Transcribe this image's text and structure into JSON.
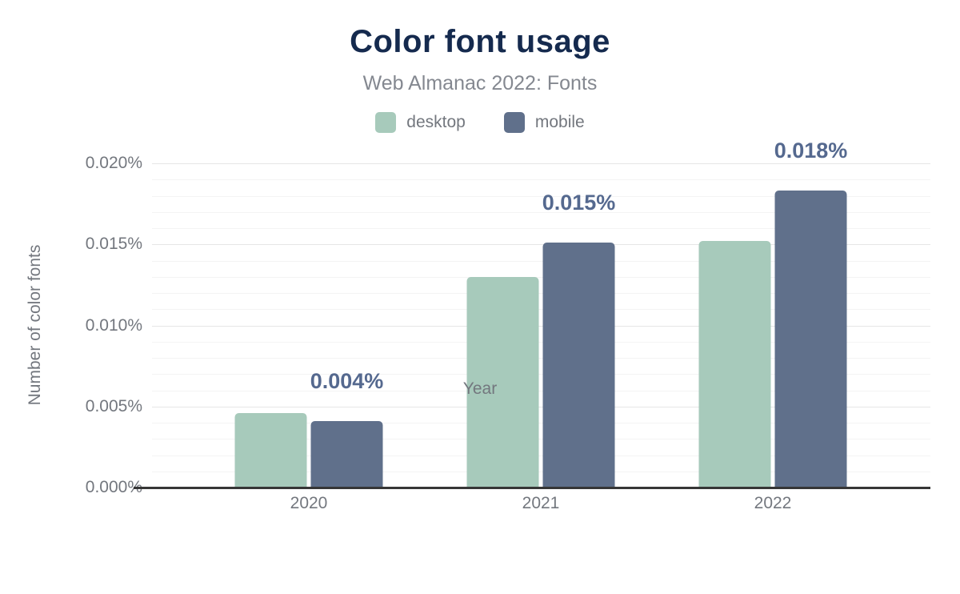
{
  "header": {
    "title": "Color font usage",
    "subtitle": "Web Almanac 2022: Fonts"
  },
  "chart_data": {
    "type": "bar",
    "title": "Color font usage",
    "subtitle": "Web Almanac 2022: Fonts",
    "categories": [
      "2020",
      "2021",
      "2022"
    ],
    "series": [
      {
        "name": "desktop",
        "color": "#a7cabb",
        "values": [
          0.0046,
          0.013,
          0.0152
        ]
      },
      {
        "name": "mobile",
        "color": "#60708b",
        "values": [
          0.0041,
          0.0151,
          0.0183
        ]
      }
    ],
    "annotations": [
      {
        "text": "0.004%",
        "category": "2020",
        "series": "mobile"
      },
      {
        "text": "0.015%",
        "category": "2021",
        "series": "mobile"
      },
      {
        "text": "0.018%",
        "category": "2022",
        "series": "mobile"
      }
    ],
    "xlabel": "Year",
    "ylabel": "Number of color fonts",
    "ylim": [
      0,
      0.02
    ],
    "yticks": [
      {
        "value": 0.0,
        "label": "0.000%"
      },
      {
        "value": 0.005,
        "label": "0.005%"
      },
      {
        "value": 0.01,
        "label": "0.010%"
      },
      {
        "value": 0.015,
        "label": "0.015%"
      },
      {
        "value": 0.02,
        "label": "0.020%"
      }
    ],
    "minor_grid_step": 0.001,
    "major_grid_step": 0.005,
    "grid": true,
    "legend_position": "top",
    "value_unit": "percent"
  },
  "colors": {
    "title": "#152a4e",
    "subtitle": "#848890",
    "axis_text": "#73777e",
    "annotation": "#55698f",
    "axis_line": "#363636",
    "grid_major": "#e6e6e6",
    "grid_minor": "#f4f4f4",
    "background": "#ffffff"
  }
}
